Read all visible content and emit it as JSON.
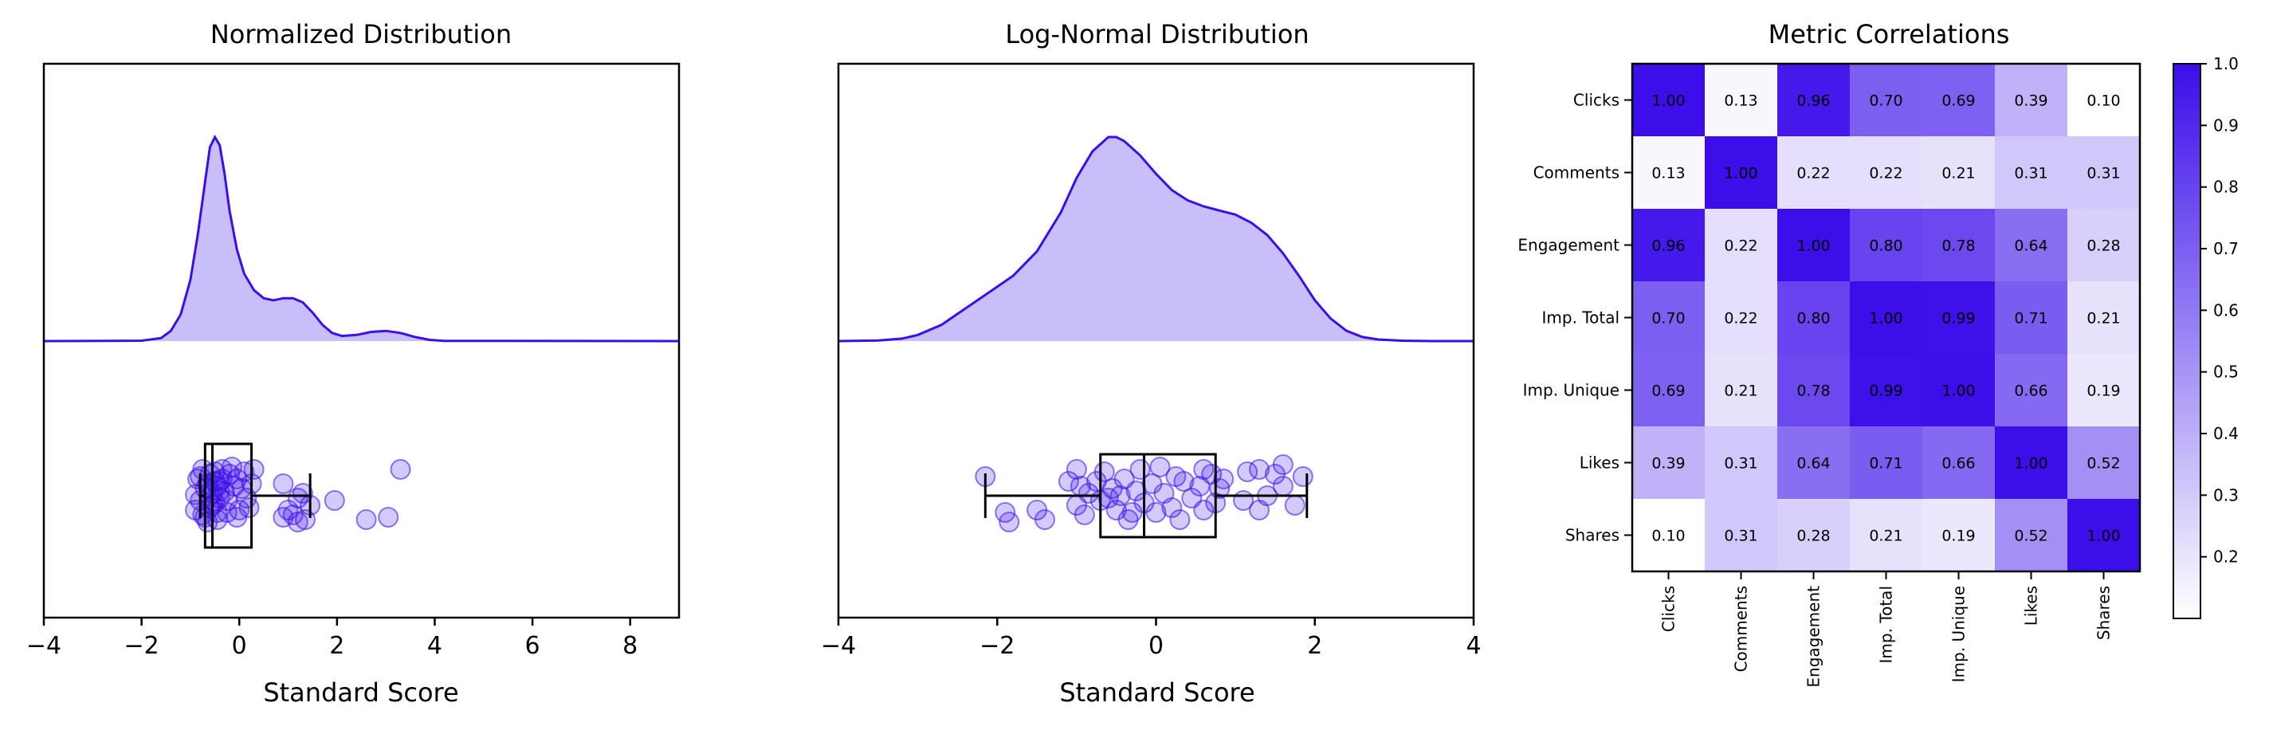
{
  "colors": {
    "accent": "#3b0eea",
    "fill": "#c8bffa",
    "point_fill": "rgba(59,14,234,0.22)",
    "point_stroke": "rgba(59,14,234,0.55)",
    "cmap_low": "#ffffff",
    "cmap_high": "#3b0eea"
  },
  "chart_data": [
    {
      "type": "area",
      "title": "Normalized Distribution",
      "xlabel": "Standard Score",
      "xlim": [
        -4,
        9
      ],
      "xticks": [
        "−4",
        "−2",
        "0",
        "2",
        "4",
        "6",
        "8"
      ],
      "xtick_values": [
        -4,
        -2,
        0,
        2,
        4,
        6,
        8
      ],
      "density": {
        "x": [
          -4,
          -2,
          -1.6,
          -1.4,
          -1.2,
          -1.0,
          -0.85,
          -0.7,
          -0.6,
          -0.5,
          -0.4,
          -0.3,
          -0.2,
          -0.05,
          0.1,
          0.3,
          0.5,
          0.7,
          0.9,
          1.1,
          1.3,
          1.5,
          1.7,
          1.9,
          2.1,
          2.4,
          2.7,
          3.0,
          3.3,
          3.6,
          3.9,
          4.2,
          9
        ],
        "y": [
          0,
          0.002,
          0.015,
          0.05,
          0.13,
          0.3,
          0.52,
          0.78,
          0.95,
          1.0,
          0.96,
          0.82,
          0.64,
          0.45,
          0.33,
          0.25,
          0.21,
          0.2,
          0.21,
          0.21,
          0.19,
          0.14,
          0.08,
          0.04,
          0.025,
          0.03,
          0.045,
          0.05,
          0.04,
          0.02,
          0.006,
          0.001,
          0
        ]
      },
      "points": [
        [
          -0.9,
          0.02
        ],
        [
          -0.8,
          -0.1
        ],
        [
          -0.7,
          0.15
        ],
        [
          -0.6,
          -0.25
        ],
        [
          -0.55,
          0.05
        ],
        [
          -0.5,
          0.3
        ],
        [
          -0.45,
          -0.35
        ],
        [
          -0.4,
          0.1
        ],
        [
          -0.85,
          0.35
        ],
        [
          -0.75,
          -0.4
        ],
        [
          -0.65,
          0.25
        ],
        [
          -0.6,
          0.45
        ],
        [
          -0.5,
          -0.15
        ],
        [
          -0.45,
          0.2
        ],
        [
          -0.4,
          -0.05
        ],
        [
          -0.35,
          0.35
        ],
        [
          -0.9,
          -0.3
        ],
        [
          -0.8,
          0.4
        ],
        [
          -0.7,
          -0.45
        ],
        [
          -0.6,
          0.0
        ],
        [
          -0.55,
          -0.2
        ],
        [
          -0.5,
          0.5
        ],
        [
          -0.45,
          -0.5
        ],
        [
          -0.4,
          0.3
        ],
        [
          -0.3,
          0.08
        ],
        [
          -0.25,
          -0.1
        ],
        [
          -0.2,
          0.45
        ],
        [
          -0.1,
          0.2
        ],
        [
          0.0,
          -0.3
        ],
        [
          -0.15,
          0.6
        ],
        [
          0.1,
          0.5
        ],
        [
          0.2,
          -0.25
        ],
        [
          0.3,
          0.55
        ],
        [
          -0.05,
          -0.45
        ],
        [
          0.05,
          0.15
        ],
        [
          -0.35,
          0.55
        ],
        [
          -0.25,
          -0.35
        ],
        [
          0.15,
          -0.05
        ],
        [
          -0.65,
          -0.55
        ],
        [
          -0.75,
          0.55
        ],
        [
          0.9,
          0.25
        ],
        [
          1.0,
          -0.3
        ],
        [
          1.2,
          -0.05
        ],
        [
          1.3,
          0.05
        ],
        [
          1.1,
          -0.4
        ],
        [
          1.35,
          -0.5
        ],
        [
          1.45,
          -0.2
        ],
        [
          1.95,
          -0.1
        ],
        [
          2.6,
          -0.5
        ],
        [
          3.05,
          -0.45
        ],
        [
          3.3,
          0.55
        ],
        [
          0.9,
          -0.45
        ],
        [
          1.2,
          -0.55
        ],
        [
          -0.05,
          0.35
        ],
        [
          0.25,
          0.25
        ]
      ],
      "box": {
        "q1": -0.7,
        "median": -0.55,
        "q3": 0.25,
        "whisker_low": -0.8,
        "whisker_high": 1.45
      }
    },
    {
      "type": "area",
      "title": "Log-Normal Distribution",
      "xlabel": "Standard Score",
      "xlim": [
        -4,
        4
      ],
      "xticks": [
        "−4",
        "−2",
        "0",
        "2",
        "4"
      ],
      "xtick_values": [
        -4,
        -2,
        0,
        2,
        4
      ],
      "density": {
        "x": [
          -4,
          -3.5,
          -3.2,
          -3.0,
          -2.7,
          -2.4,
          -2.1,
          -1.8,
          -1.5,
          -1.2,
          -1.0,
          -0.8,
          -0.6,
          -0.5,
          -0.4,
          -0.2,
          0.0,
          0.2,
          0.4,
          0.6,
          0.8,
          1.0,
          1.2,
          1.4,
          1.6,
          1.8,
          2.0,
          2.2,
          2.4,
          2.6,
          2.8,
          3.1,
          3.5,
          4
        ],
        "y": [
          0,
          0.003,
          0.012,
          0.03,
          0.08,
          0.16,
          0.24,
          0.32,
          0.44,
          0.63,
          0.8,
          0.93,
          1.0,
          1.0,
          0.98,
          0.91,
          0.82,
          0.74,
          0.69,
          0.66,
          0.64,
          0.62,
          0.58,
          0.52,
          0.43,
          0.32,
          0.2,
          0.11,
          0.05,
          0.02,
          0.008,
          0.002,
          0.0,
          0
        ]
      },
      "points": [
        [
          -2.15,
          0.4
        ],
        [
          -1.9,
          -0.35
        ],
        [
          -1.85,
          -0.55
        ],
        [
          -1.5,
          -0.3
        ],
        [
          -1.4,
          -0.5
        ],
        [
          -1.1,
          0.3
        ],
        [
          -1.0,
          0.55
        ],
        [
          -1.0,
          -0.2
        ],
        [
          -0.9,
          -0.4
        ],
        [
          -0.85,
          0.05
        ],
        [
          -0.75,
          0.3
        ],
        [
          -0.7,
          -0.1
        ],
        [
          -0.65,
          0.5
        ],
        [
          -0.55,
          0.15
        ],
        [
          -0.5,
          -0.3
        ],
        [
          -0.45,
          0.0
        ],
        [
          -0.4,
          0.35
        ],
        [
          -0.35,
          -0.5
        ],
        [
          -0.25,
          0.1
        ],
        [
          -0.2,
          0.55
        ],
        [
          -0.15,
          -0.15
        ],
        [
          -0.05,
          0.25
        ],
        [
          0.0,
          -0.35
        ],
        [
          0.05,
          0.6
        ],
        [
          0.1,
          0.05
        ],
        [
          0.2,
          -0.25
        ],
        [
          0.25,
          0.4
        ],
        [
          0.3,
          -0.5
        ],
        [
          0.45,
          -0.05
        ],
        [
          0.55,
          0.2
        ],
        [
          0.6,
          -0.3
        ],
        [
          0.7,
          0.45
        ],
        [
          0.75,
          -0.15
        ],
        [
          0.8,
          0.15
        ],
        [
          1.15,
          0.5
        ],
        [
          1.3,
          -0.3
        ],
        [
          1.4,
          0.0
        ],
        [
          1.5,
          0.45
        ],
        [
          1.6,
          0.2
        ],
        [
          1.75,
          -0.2
        ],
        [
          1.85,
          0.4
        ],
        [
          1.6,
          0.65
        ],
        [
          1.3,
          0.55
        ],
        [
          1.1,
          -0.1
        ],
        [
          -0.6,
          -0.05
        ],
        [
          -0.3,
          -0.35
        ],
        [
          0.35,
          0.3
        ],
        [
          0.6,
          0.55
        ],
        [
          -0.95,
          0.2
        ],
        [
          0.85,
          0.35
        ]
      ],
      "box": {
        "q1": -0.7,
        "median": -0.15,
        "q3": 0.75,
        "whisker_low": -2.15,
        "whisker_high": 1.9
      }
    },
    {
      "type": "heatmap",
      "title": "Metric Correlations",
      "labels": [
        "Clicks",
        "Comments",
        "Engagement",
        "Imp. Total",
        "Imp. Unique",
        "Likes",
        "Shares"
      ],
      "values": [
        [
          1.0,
          0.13,
          0.96,
          0.7,
          0.69,
          0.39,
          0.1
        ],
        [
          0.13,
          1.0,
          0.22,
          0.22,
          0.21,
          0.31,
          0.31
        ],
        [
          0.96,
          0.22,
          1.0,
          0.8,
          0.78,
          0.64,
          0.28
        ],
        [
          0.7,
          0.22,
          0.8,
          1.0,
          0.99,
          0.71,
          0.21
        ],
        [
          0.69,
          0.21,
          0.78,
          0.99,
          1.0,
          0.66,
          0.19
        ],
        [
          0.39,
          0.31,
          0.64,
          0.71,
          0.66,
          1.0,
          0.52
        ],
        [
          0.1,
          0.31,
          0.28,
          0.21,
          0.19,
          0.52,
          1.0
        ]
      ],
      "value_labels": [
        [
          "1.00",
          "0.13",
          "0.96",
          "0.70",
          "0.69",
          "0.39",
          "0.10"
        ],
        [
          "0.13",
          "1.00",
          "0.22",
          "0.22",
          "0.21",
          "0.31",
          "0.31"
        ],
        [
          "0.96",
          "0.22",
          "1.00",
          "0.80",
          "0.78",
          "0.64",
          "0.28"
        ],
        [
          "0.70",
          "0.22",
          "0.80",
          "1.00",
          "0.99",
          "0.71",
          "0.21"
        ],
        [
          "0.69",
          "0.21",
          "0.78",
          "0.99",
          "1.00",
          "0.66",
          "0.19"
        ],
        [
          "0.39",
          "0.31",
          "0.64",
          "0.71",
          "0.66",
          "1.00",
          "0.52"
        ],
        [
          "0.10",
          "0.31",
          "0.28",
          "0.21",
          "0.19",
          "0.52",
          "1.00"
        ]
      ],
      "colorbar": {
        "range": [
          0.1,
          1.0
        ],
        "ticks": [
          "0.2",
          "0.3",
          "0.4",
          "0.5",
          "0.6",
          "0.7",
          "0.8",
          "0.9",
          "1.0"
        ],
        "tick_values": [
          0.2,
          0.3,
          0.4,
          0.5,
          0.6,
          0.7,
          0.8,
          0.9,
          1.0
        ]
      }
    }
  ]
}
